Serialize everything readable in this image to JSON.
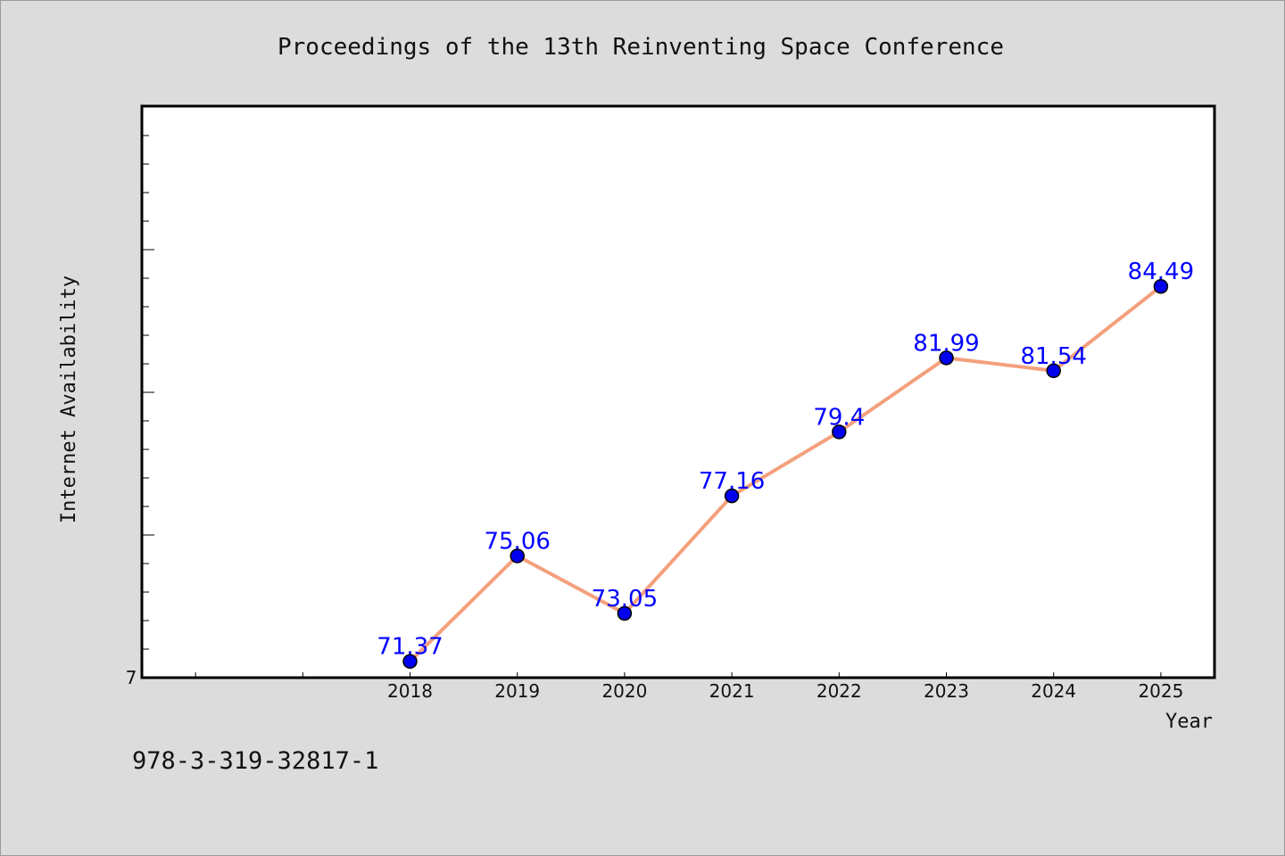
{
  "chart_data": {
    "type": "line",
    "title": "Proceedings of the 13th Reinventing Space Conference",
    "xlabel": "Year",
    "ylabel": "Internet Availability",
    "x": [
      "2018",
      "2019",
      "2020",
      "2021",
      "2022",
      "2023",
      "2024",
      "2025"
    ],
    "series": [
      {
        "values": [
          71.37,
          75.06,
          73.05,
          77.16,
          79.4,
          81.99,
          81.54,
          84.49
        ],
        "data_labels": [
          "71.37",
          "75.06",
          "73.05",
          "77.16",
          "79.4",
          "81.99",
          "81.54",
          "84.49"
        ],
        "line_color": "#f4a07c",
        "marker_color": "#0000ee"
      }
    ],
    "y_tick_labels": [
      "7"
    ],
    "xlim": [
      2015.5,
      2025.5
    ],
    "ylim": [
      70.8,
      90.8
    ],
    "grid": false,
    "legend": "none"
  },
  "footer_text": "978-3-319-32817-1"
}
